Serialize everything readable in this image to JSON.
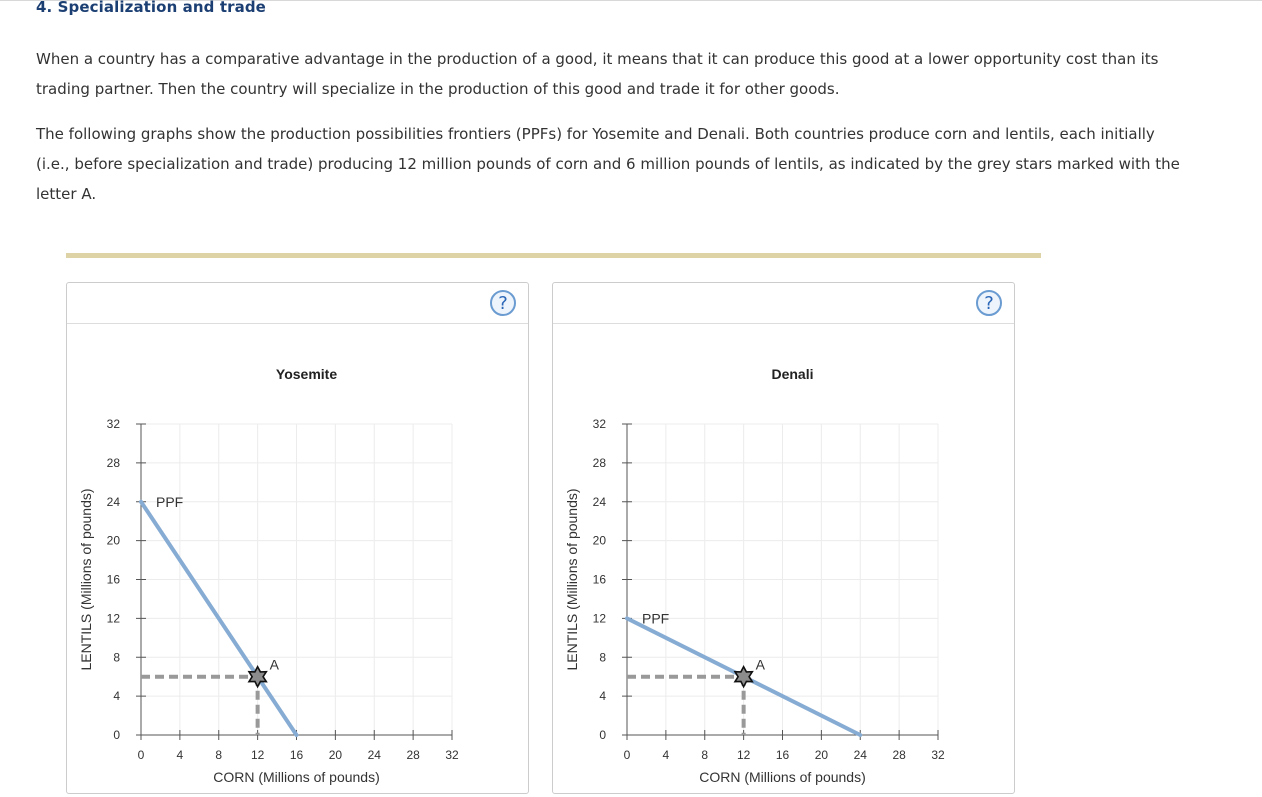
{
  "header": {
    "title": "4. Specialization and trade"
  },
  "paragraphs": {
    "p1": "When a country has a comparative advantage in the production of a good, it means that it can produce this good at a lower opportunity cost than its trading partner. Then the country will specialize in the production of this good and trade it for other goods.",
    "p2": "The following graphs show the production possibilities frontiers (PPFs) for Yosemite and Denali. Both countries produce corn and lentils, each initially (i.e., before specialization and trade) producing 12 million pounds of corn and 6 million pounds of lentils, as indicated by the grey stars marked with the letter A."
  },
  "help_label": "?",
  "colors": {
    "ppf_line": "#86acd4",
    "dashed_guide": "#999999",
    "star_fill": "#8c8c8c",
    "divider": "#ddd3a6",
    "heading": "#1c3f73"
  },
  "chart_data": [
    {
      "type": "line",
      "title": "Yosemite",
      "xlabel": "CORN (Millions of pounds)",
      "ylabel": "LENTILS (Millions of pounds)",
      "xlim": [
        0,
        32
      ],
      "ylim": [
        0,
        32
      ],
      "xticks": [
        "0",
        "4",
        "8",
        "12",
        "16",
        "20",
        "24",
        "28",
        "32"
      ],
      "yticks": [
        "0",
        "4",
        "8",
        "12",
        "16",
        "20",
        "24",
        "28",
        "32"
      ],
      "grid": true,
      "ppf": {
        "label": "PPF",
        "points": [
          [
            0,
            24
          ],
          [
            16,
            0
          ]
        ]
      },
      "point": {
        "label": "A",
        "x": 12,
        "y": 6
      }
    },
    {
      "type": "line",
      "title": "Denali",
      "xlabel": "CORN (Millions of pounds)",
      "ylabel": "LENTILS (Millions of pounds)",
      "xlim": [
        0,
        32
      ],
      "ylim": [
        0,
        32
      ],
      "xticks": [
        "0",
        "4",
        "8",
        "12",
        "16",
        "20",
        "24",
        "28",
        "32"
      ],
      "yticks": [
        "0",
        "4",
        "8",
        "12",
        "16",
        "20",
        "24",
        "28",
        "32"
      ],
      "grid": true,
      "ppf": {
        "label": "PPF",
        "points": [
          [
            0,
            12
          ],
          [
            24,
            0
          ]
        ]
      },
      "point": {
        "label": "A",
        "x": 12,
        "y": 6
      }
    }
  ]
}
